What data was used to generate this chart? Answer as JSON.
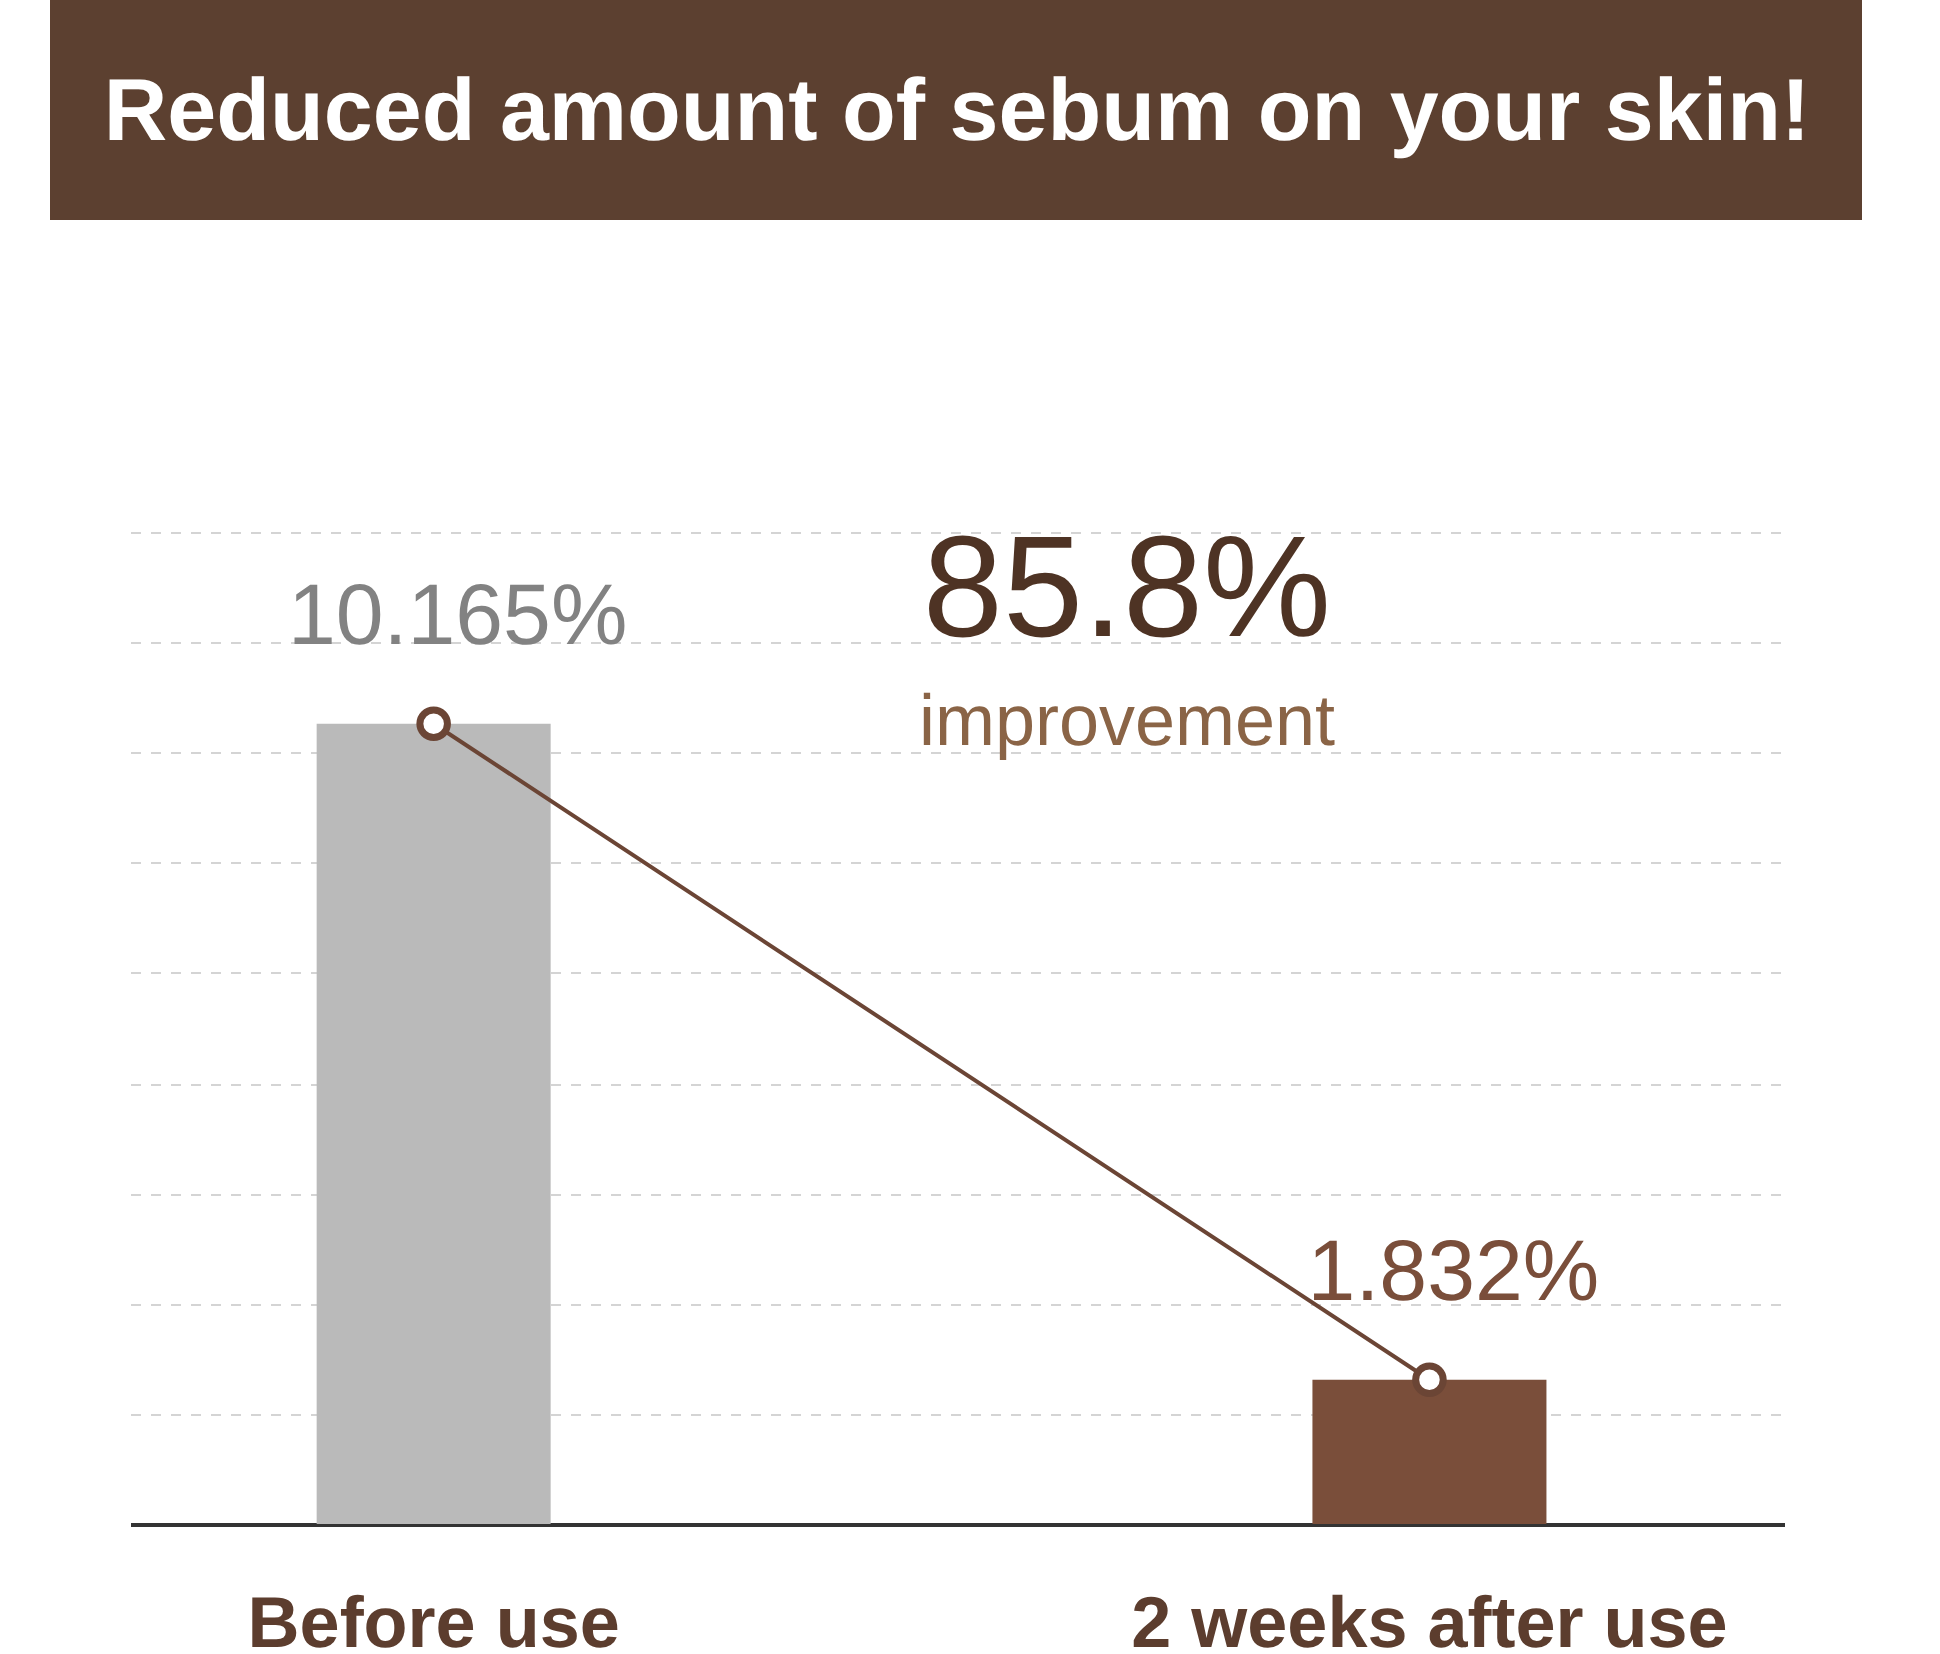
{
  "chart_data": {
    "type": "bar",
    "title": "Reduced amount of sebum on your skin!",
    "categories": [
      "Before use",
      "2 weeks after use"
    ],
    "series": [
      {
        "values": [
          10.165,
          1.832
        ],
        "colors": [
          "#bababa",
          "#7a4e3a"
        ],
        "value_labels": [
          "10.165%",
          "1.832%"
        ]
      },
      {
        "type": "line",
        "values": [
          10.165,
          1.832
        ],
        "color": "#6b4535",
        "marker": "circle"
      }
    ],
    "ylim": [
      0,
      12.6
    ],
    "yticks": [
      {
        "value": 1.4,
        "label": null
      },
      {
        "value": 2.8,
        "label": null
      },
      {
        "value": 4.2,
        "label": null
      },
      {
        "value": 5.6,
        "label": null
      },
      {
        "value": 7,
        "label": null
      },
      {
        "value": 8.4,
        "label": null
      },
      {
        "value": 9.8,
        "label": null
      },
      {
        "value": 11.2,
        "label": null
      },
      {
        "value": 12.6,
        "label": null
      }
    ],
    "grid": "y",
    "tick_labels": "x",
    "annotations": [
      "85.8%",
      "improvement"
    ]
  }
}
